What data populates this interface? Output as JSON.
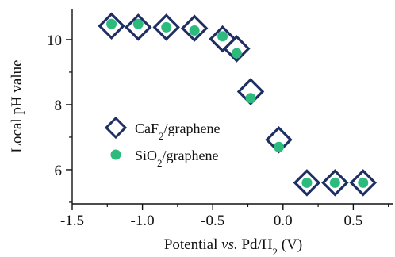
{
  "chart_data": {
    "type": "scatter",
    "x_label": {
      "prefix": "Potential ",
      "italic": "vs.",
      "middle": " Pd/H",
      "subscript": "2",
      "suffix": " (V)"
    },
    "y_label": "Local pH value",
    "x_range": [
      -1.5,
      0.78
    ],
    "y_range": [
      4.95,
      10.95
    ],
    "x_ticks": [
      -1.5,
      -1.0,
      -0.5,
      0.0,
      0.5
    ],
    "x_tick_labels": [
      "-1.5",
      "-1.0",
      "-0.5",
      "0.0",
      "0.5"
    ],
    "x_minor_ticks": [
      -1.25,
      -0.75,
      -0.25,
      0.25,
      0.75
    ],
    "y_ticks": [
      6,
      8,
      10
    ],
    "y_tick_labels": [
      "6",
      "8",
      "10"
    ],
    "y_minor_ticks": [
      5,
      7,
      9
    ],
    "legend_position": "center-left",
    "series": [
      {
        "legend": {
          "main": "CaF",
          "subscript": "2",
          "suffix": "/graphene"
        },
        "marker": "diamond-open",
        "color": "#1f2f63",
        "points": [
          {
            "x": -1.22,
            "y": 10.42
          },
          {
            "x": -1.03,
            "y": 10.38
          },
          {
            "x": -0.83,
            "y": 10.38
          },
          {
            "x": -0.63,
            "y": 10.35
          },
          {
            "x": -0.43,
            "y": 10.02
          },
          {
            "x": -0.33,
            "y": 9.72
          },
          {
            "x": -0.23,
            "y": 8.4
          },
          {
            "x": -0.03,
            "y": 6.92
          },
          {
            "x": 0.17,
            "y": 5.6
          },
          {
            "x": 0.37,
            "y": 5.6
          },
          {
            "x": 0.57,
            "y": 5.6
          }
        ]
      },
      {
        "legend": {
          "main": "SiO",
          "subscript": "2",
          "suffix": "/graphene"
        },
        "marker": "circle-filled",
        "color": "#2dbb7d",
        "points": [
          {
            "x": -1.22,
            "y": 10.48
          },
          {
            "x": -1.03,
            "y": 10.48
          },
          {
            "x": -0.83,
            "y": 10.38
          },
          {
            "x": -0.63,
            "y": 10.28
          },
          {
            "x": -0.43,
            "y": 10.1
          },
          {
            "x": -0.33,
            "y": 9.58
          },
          {
            "x": -0.23,
            "y": 8.2
          },
          {
            "x": -0.03,
            "y": 6.7
          },
          {
            "x": 0.17,
            "y": 5.6
          },
          {
            "x": 0.37,
            "y": 5.6
          },
          {
            "x": 0.57,
            "y": 5.6
          }
        ]
      }
    ]
  }
}
